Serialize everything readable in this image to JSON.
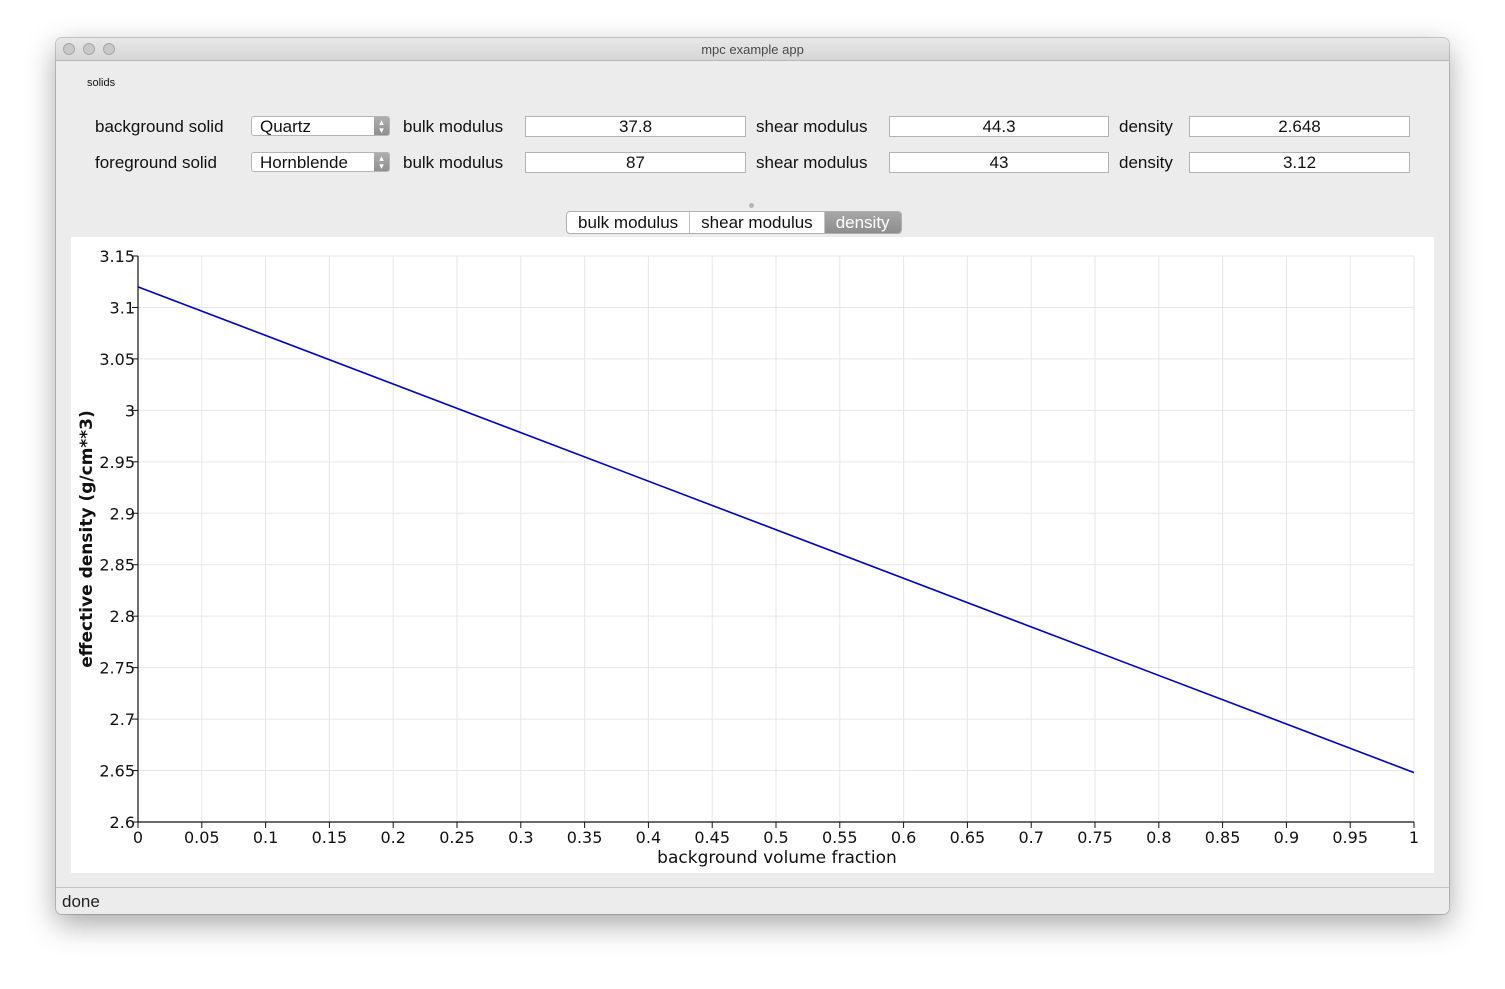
{
  "window": {
    "title": "mpc example app"
  },
  "solids": {
    "group_label": "solids",
    "rows": [
      {
        "label": "background solid",
        "selected": "Quartz",
        "bulk_label": "bulk modulus",
        "bulk_value": "37.8",
        "shear_label": "shear modulus",
        "shear_value": "44.3",
        "density_label": "density",
        "density_value": "2.648"
      },
      {
        "label": "foreground solid",
        "selected": "Hornblende",
        "bulk_label": "bulk modulus",
        "bulk_value": "87",
        "shear_label": "shear modulus",
        "shear_value": "43",
        "density_label": "density",
        "density_value": "3.12"
      }
    ]
  },
  "tabs": [
    {
      "label": "bulk modulus",
      "active": false
    },
    {
      "label": "shear modulus",
      "active": false
    },
    {
      "label": "density",
      "active": true
    }
  ],
  "chart_data": {
    "type": "line",
    "title": "",
    "xlabel": "background volume fraction",
    "ylabel": "effective density (g/cm**3)",
    "xlim": [
      0,
      1
    ],
    "ylim": [
      2.6,
      3.15
    ],
    "x_ticks": [
      "0",
      "0.05",
      "0.1",
      "0.15",
      "0.2",
      "0.25",
      "0.3",
      "0.35",
      "0.4",
      "0.45",
      "0.5",
      "0.55",
      "0.6",
      "0.65",
      "0.7",
      "0.75",
      "0.8",
      "0.85",
      "0.9",
      "0.95",
      "1"
    ],
    "y_ticks": [
      "2.6",
      "2.65",
      "2.7",
      "2.75",
      "2.8",
      "2.85",
      "2.9",
      "2.95",
      "3",
      "3.05",
      "3.1",
      "3.15"
    ],
    "grid": true,
    "series": [
      {
        "color": "#0000cc",
        "x": [
          0,
          1
        ],
        "y": [
          3.12,
          2.648
        ]
      }
    ]
  },
  "status": {
    "text": "done"
  }
}
